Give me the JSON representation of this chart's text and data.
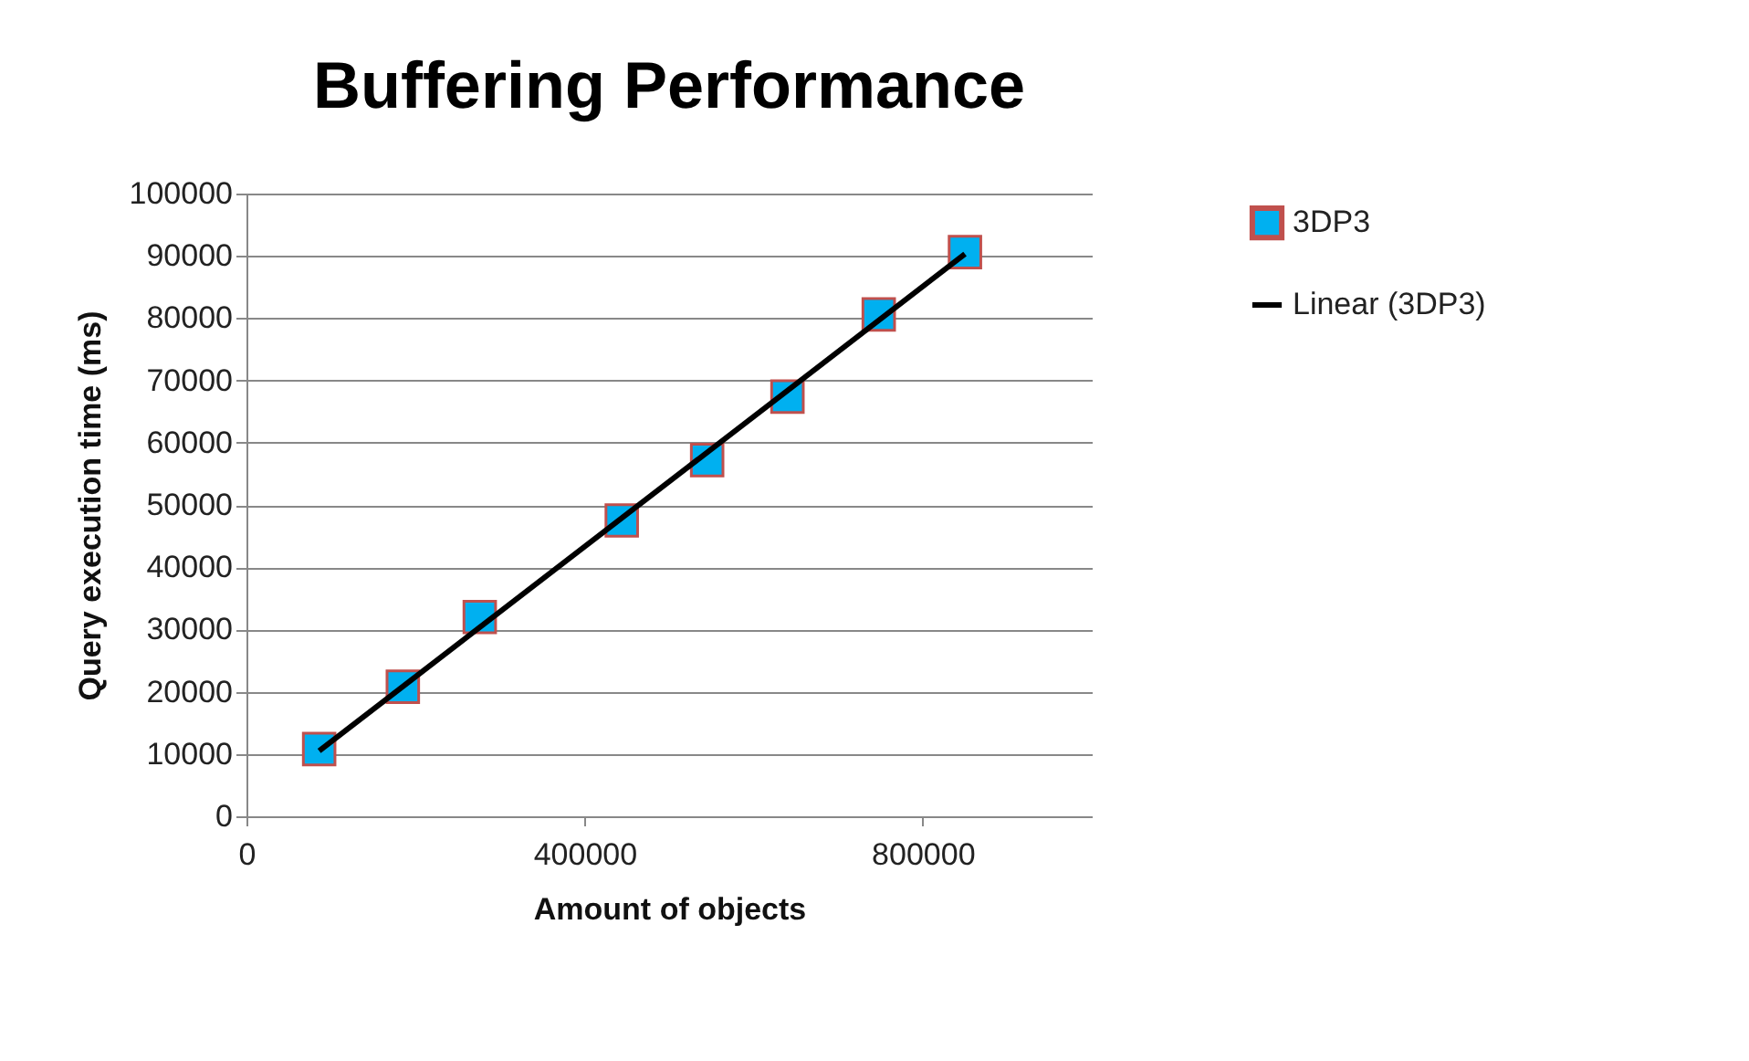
{
  "chart_data": {
    "type": "scatter",
    "title": "Buffering Performance",
    "xlabel": "Amount of objects",
    "ylabel": "Query execution time (ms)",
    "xlim": [
      0,
      1000000
    ],
    "xticks": [
      0,
      400000,
      800000
    ],
    "ylim": [
      0,
      100000
    ],
    "yticks": [
      0,
      10000,
      20000,
      30000,
      40000,
      50000,
      60000,
      70000,
      80000,
      90000,
      100000
    ],
    "grid": "y",
    "legend": "right",
    "series": [
      {
        "name": "3DP3",
        "marker": "square",
        "color": "#00b0f0",
        "x": [
          86000,
          185000,
          276000,
          444000,
          545000,
          640000,
          748000,
          850000
        ],
        "values": [
          10800,
          20800,
          32000,
          47500,
          57200,
          67400,
          80600,
          90600
        ]
      },
      {
        "name": "Linear (3DP3)",
        "type": "line",
        "marker": "none",
        "color": "#000000",
        "x": [
          86000,
          850000
        ],
        "values": [
          10500,
          90300
        ]
      }
    ]
  }
}
